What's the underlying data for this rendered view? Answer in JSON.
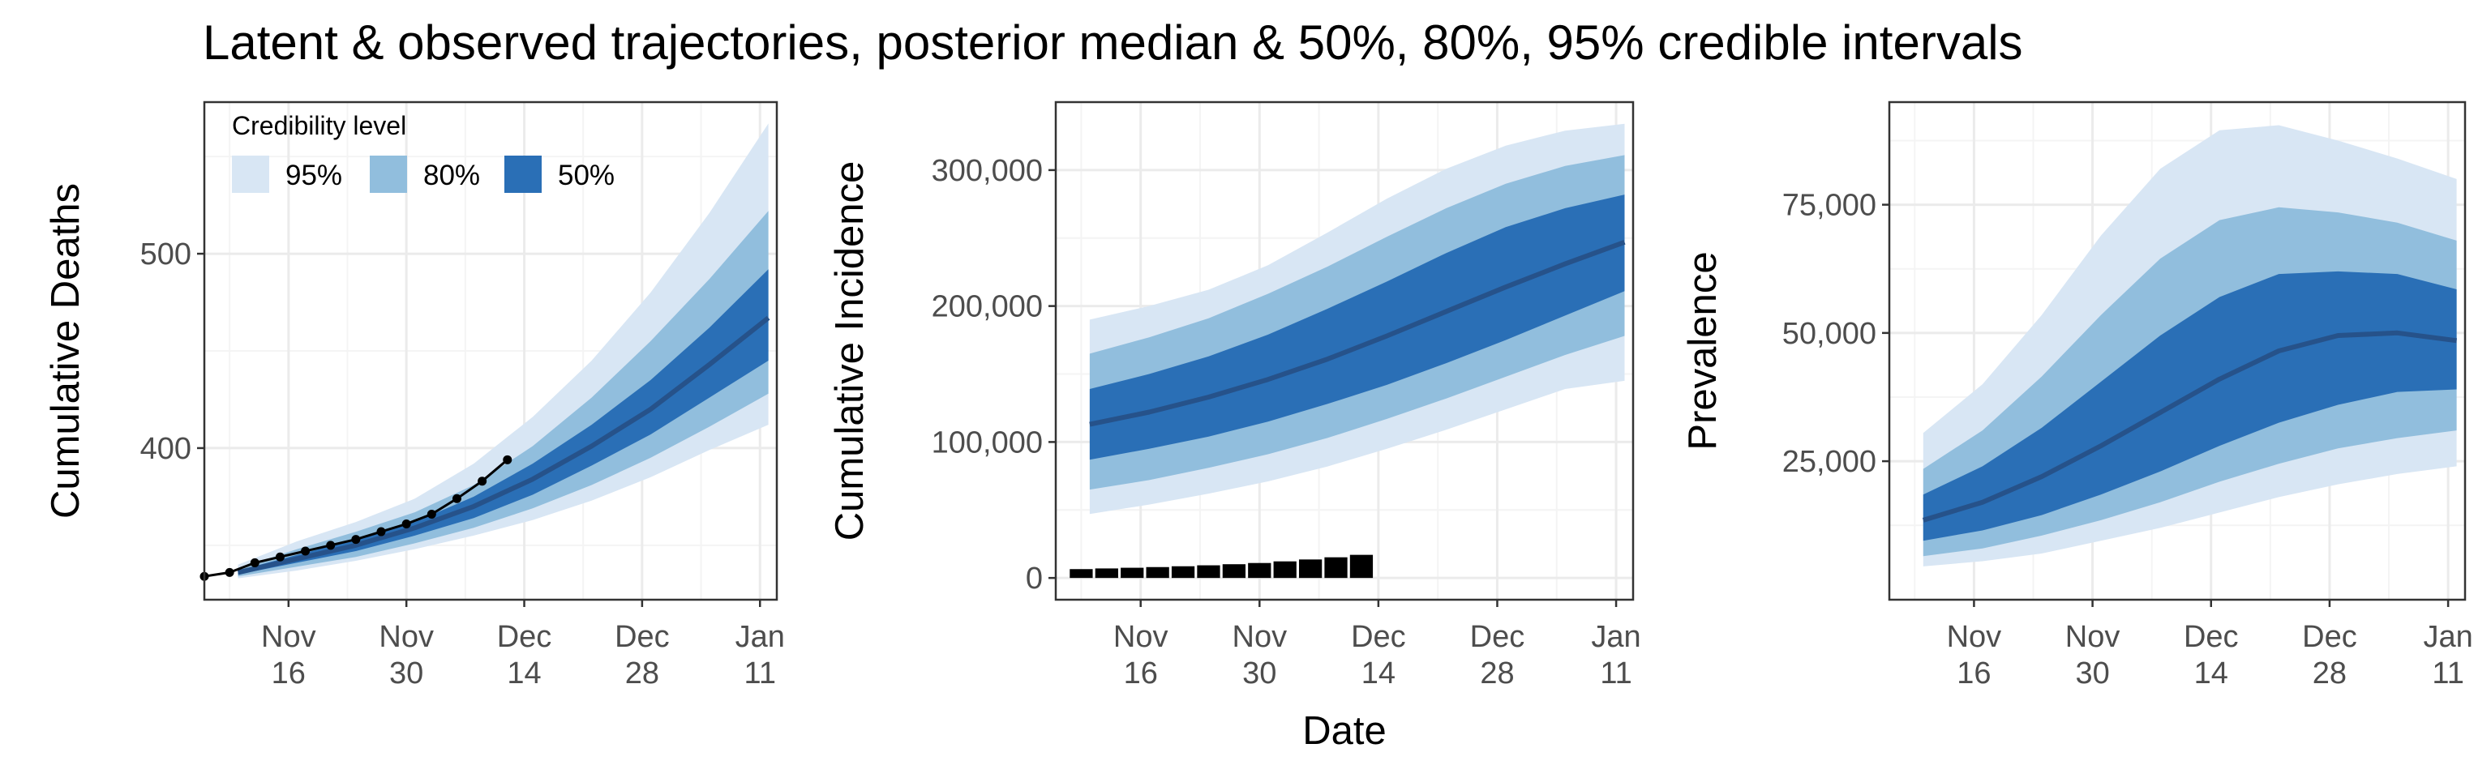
{
  "figure": {
    "title": "Latent & observed trajectories, posterior median & 50%, 80%, 95% credible intervals",
    "shared_xlabel": "Date"
  },
  "colors": {
    "ci95": "#d8e6f4",
    "ci80": "#91bedd",
    "ci50": "#2a6fb6",
    "median": "#26528a",
    "observed": "#000000",
    "grid_major": "#ebebeb",
    "grid_minor": "#f4f4f4",
    "panel_border": "#333333"
  },
  "legend": {
    "title": "Credibility level",
    "items": [
      {
        "label": "95%",
        "color": "#d8e6f4"
      },
      {
        "label": "80%",
        "color": "#91bedd"
      },
      {
        "label": "50%",
        "color": "#2a6fb6"
      }
    ],
    "placement": "top-left inside first panel"
  },
  "x_axis": {
    "type": "date",
    "range": [
      "2020-11-06",
      "2021-01-13"
    ],
    "ticks": [
      {
        "date": "2020-11-16",
        "line1": "Nov",
        "line2": "16"
      },
      {
        "date": "2020-11-30",
        "line1": "Nov",
        "line2": "30"
      },
      {
        "date": "2020-12-14",
        "line1": "Dec",
        "line2": "14"
      },
      {
        "date": "2020-12-28",
        "line1": "Dec",
        "line2": "28"
      },
      {
        "date": "2021-01-11",
        "line1": "Jan",
        "line2": "11"
      }
    ]
  },
  "chart_data": [
    {
      "type": "area",
      "ylabel": "Cumulative Deaths",
      "ylim": [
        322,
        578
      ],
      "yticks": [
        400,
        500
      ],
      "ytick_labels": [
        "400",
        "500"
      ],
      "x": [
        "2020-11-10",
        "2020-11-17",
        "2020-11-24",
        "2020-12-01",
        "2020-12-08",
        "2020-12-15",
        "2020-12-22",
        "2020-12-29",
        "2021-01-05",
        "2021-01-12"
      ],
      "median": [
        336,
        343,
        350,
        359,
        370,
        384,
        401,
        420,
        443,
        467
      ],
      "ci50": {
        "lower": [
          335,
          341,
          347,
          355,
          364,
          376,
          391,
          407,
          426,
          445
        ],
        "upper": [
          337,
          345,
          353,
          362,
          375,
          392,
          412,
          435,
          462,
          492
        ]
      },
      "ci80": {
        "lower": [
          334,
          339,
          344,
          351,
          359,
          369,
          381,
          395,
          411,
          428
        ],
        "upper": [
          338,
          348,
          357,
          367,
          381,
          401,
          426,
          455,
          487,
          522
        ]
      },
      "ci95": {
        "lower": [
          333,
          337,
          342,
          348,
          355,
          363,
          373,
          385,
          399,
          412
        ],
        "upper": [
          340,
          352,
          362,
          374,
          392,
          416,
          445,
          480,
          521,
          567
        ]
      },
      "observed": {
        "x": [
          "2020-11-06",
          "2020-11-09",
          "2020-11-12",
          "2020-11-15",
          "2020-11-18",
          "2020-11-21",
          "2020-11-24",
          "2020-11-27",
          "2020-11-30",
          "2020-12-03",
          "2020-12-06",
          "2020-12-09",
          "2020-12-12"
        ],
        "y": [
          334,
          336,
          341,
          344,
          347,
          350,
          353,
          357,
          361,
          366,
          374,
          383,
          394
        ]
      }
    },
    {
      "type": "area",
      "ylabel": "Cumulative Incidence",
      "ylim": [
        -16000,
        350000
      ],
      "yticks": [
        0,
        100000,
        200000,
        300000
      ],
      "ytick_labels": [
        "0",
        "100,000",
        "200,000",
        "300,000"
      ],
      "x": [
        "2020-11-10",
        "2020-11-17",
        "2020-11-24",
        "2020-12-01",
        "2020-12-08",
        "2020-12-15",
        "2020-12-22",
        "2020-12-29",
        "2021-01-05",
        "2021-01-12"
      ],
      "median": [
        113000,
        122000,
        133000,
        146000,
        161000,
        178000,
        196000,
        214000,
        231000,
        247000
      ],
      "ci50": {
        "lower": [
          87000,
          95000,
          104000,
          115000,
          128000,
          142000,
          158000,
          175000,
          193000,
          211000
        ],
        "upper": [
          139000,
          150000,
          163000,
          179000,
          198000,
          218000,
          239000,
          258000,
          272000,
          282000
        ]
      },
      "ci80": {
        "lower": [
          65000,
          72000,
          81000,
          91000,
          103000,
          117000,
          132000,
          148000,
          164000,
          178000
        ],
        "upper": [
          165000,
          177000,
          191000,
          209000,
          229000,
          251000,
          272000,
          290000,
          303000,
          311000
        ]
      },
      "ci95": {
        "lower": [
          47000,
          54000,
          62000,
          71000,
          82000,
          95000,
          109000,
          124000,
          139000,
          145000
        ],
        "upper": [
          190000,
          200000,
          212000,
          230000,
          254000,
          279000,
          301000,
          318000,
          329000,
          334000
        ]
      },
      "observed_bars": {
        "x": [
          "2020-11-09",
          "2020-11-12",
          "2020-11-15",
          "2020-11-18",
          "2020-11-21",
          "2020-11-24",
          "2020-11-27",
          "2020-11-30",
          "2020-12-03",
          "2020-12-06",
          "2020-12-09",
          "2020-12-12"
        ],
        "y": [
          6500,
          7000,
          7500,
          8000,
          8600,
          9300,
          10100,
          11000,
          12200,
          13600,
          15200,
          17000
        ]
      }
    },
    {
      "type": "area",
      "ylabel": "Prevalence",
      "ylim": [
        -2000,
        95000
      ],
      "yticks": [
        25000,
        50000,
        75000
      ],
      "ytick_labels": [
        "25,000",
        "50,000",
        "75,000"
      ],
      "x": [
        "2020-11-10",
        "2020-11-17",
        "2020-11-24",
        "2020-12-01",
        "2020-12-08",
        "2020-12-15",
        "2020-12-22",
        "2020-12-29",
        "2021-01-05",
        "2021-01-12"
      ],
      "median": [
        13500,
        17000,
        22000,
        28000,
        34500,
        41000,
        46500,
        49500,
        50000,
        48500
      ],
      "ci50": {
        "lower": [
          9500,
          11500,
          14500,
          18500,
          23000,
          28000,
          32500,
          36000,
          38500,
          39000
        ],
        "upper": [
          18500,
          24000,
          31500,
          40500,
          49500,
          57000,
          61500,
          62000,
          61500,
          58500
        ]
      },
      "ci80": {
        "lower": [
          6500,
          8000,
          10500,
          13500,
          17000,
          21000,
          24500,
          27500,
          29500,
          31000
        ],
        "upper": [
          23500,
          31000,
          41500,
          53500,
          64500,
          72000,
          74500,
          73500,
          71500,
          68000
        ]
      },
      "ci95": {
        "lower": [
          4500,
          5500,
          7000,
          9500,
          12000,
          15000,
          18000,
          20500,
          22500,
          24000
        ],
        "upper": [
          30500,
          40000,
          53500,
          69000,
          82000,
          89500,
          90500,
          87500,
          84000,
          80000
        ]
      }
    }
  ]
}
